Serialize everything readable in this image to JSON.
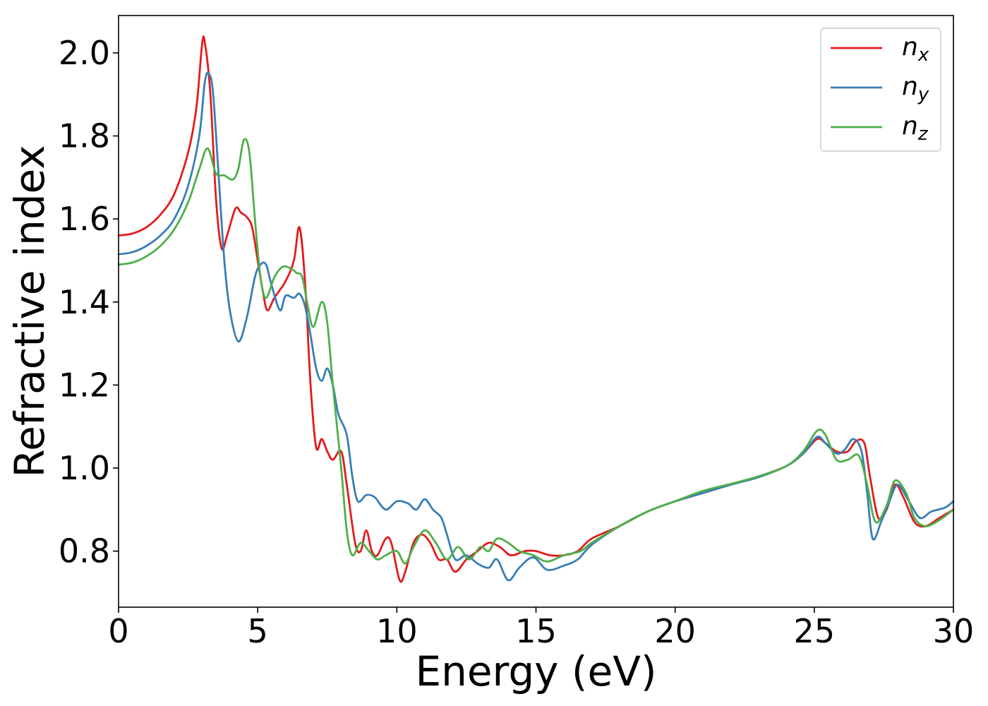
{
  "chart_data": {
    "type": "line",
    "xlabel": "Energy (eV)",
    "ylabel": "Refractive index",
    "xlim": [
      0,
      30
    ],
    "ylim": [
      0.665,
      2.09
    ],
    "xticks": [
      0,
      5,
      10,
      15,
      20,
      25,
      30
    ],
    "yticks": [
      0.8,
      1.0,
      1.2,
      1.4,
      1.6,
      1.8,
      2.0
    ],
    "ytick_labels": [
      "0.8",
      "1.0",
      "1.2",
      "1.4",
      "1.6",
      "1.8",
      "2.0"
    ],
    "grid": false,
    "legend_position": "top-right",
    "series": [
      {
        "name": "n",
        "subscript": "x",
        "color": "#e41a1c",
        "points": [
          [
            0,
            1.56
          ],
          [
            0.5,
            1.565
          ],
          [
            1,
            1.58
          ],
          [
            1.5,
            1.61
          ],
          [
            2,
            1.66
          ],
          [
            2.5,
            1.76
          ],
          [
            2.8,
            1.87
          ],
          [
            3.0,
            2.02
          ],
          [
            3.1,
            2.025
          ],
          [
            3.3,
            1.9
          ],
          [
            3.5,
            1.65
          ],
          [
            3.7,
            1.53
          ],
          [
            3.9,
            1.56
          ],
          [
            4.2,
            1.625
          ],
          [
            4.4,
            1.615
          ],
          [
            4.6,
            1.605
          ],
          [
            4.8,
            1.58
          ],
          [
            5.0,
            1.5
          ],
          [
            5.2,
            1.42
          ],
          [
            5.35,
            1.38
          ],
          [
            5.6,
            1.41
          ],
          [
            6.0,
            1.45
          ],
          [
            6.3,
            1.5
          ],
          [
            6.5,
            1.58
          ],
          [
            6.7,
            1.45
          ],
          [
            6.9,
            1.2
          ],
          [
            7.1,
            1.05
          ],
          [
            7.3,
            1.07
          ],
          [
            7.5,
            1.04
          ],
          [
            7.7,
            1.02
          ],
          [
            8.0,
            1.04
          ],
          [
            8.2,
            0.96
          ],
          [
            8.5,
            0.82
          ],
          [
            8.7,
            0.8
          ],
          [
            8.9,
            0.85
          ],
          [
            9.1,
            0.8
          ],
          [
            9.3,
            0.79
          ],
          [
            9.6,
            0.83
          ],
          [
            9.8,
            0.82
          ],
          [
            10.1,
            0.73
          ],
          [
            10.3,
            0.75
          ],
          [
            10.6,
            0.82
          ],
          [
            10.9,
            0.84
          ],
          [
            11.2,
            0.82
          ],
          [
            11.5,
            0.78
          ],
          [
            11.8,
            0.78
          ],
          [
            12.1,
            0.75
          ],
          [
            12.5,
            0.78
          ],
          [
            12.9,
            0.8
          ],
          [
            13.3,
            0.82
          ],
          [
            13.7,
            0.81
          ],
          [
            14.1,
            0.79
          ],
          [
            14.6,
            0.8
          ],
          [
            15.0,
            0.8
          ],
          [
            15.5,
            0.79
          ],
          [
            16.0,
            0.79
          ],
          [
            16.5,
            0.8
          ],
          [
            17.0,
            0.83
          ],
          [
            18.0,
            0.86
          ],
          [
            19.0,
            0.895
          ],
          [
            20.0,
            0.92
          ],
          [
            21.0,
            0.94
          ],
          [
            22.0,
            0.96
          ],
          [
            23.0,
            0.98
          ],
          [
            24.0,
            1.005
          ],
          [
            24.6,
            1.035
          ],
          [
            25.1,
            1.07
          ],
          [
            25.4,
            1.06
          ],
          [
            25.8,
            1.04
          ],
          [
            26.2,
            1.04
          ],
          [
            26.5,
            1.065
          ],
          [
            26.8,
            1.06
          ],
          [
            27.0,
            0.98
          ],
          [
            27.3,
            0.88
          ],
          [
            27.6,
            0.9
          ],
          [
            27.9,
            0.96
          ],
          [
            28.2,
            0.93
          ],
          [
            28.6,
            0.87
          ],
          [
            29.0,
            0.86
          ],
          [
            29.5,
            0.88
          ],
          [
            30.0,
            0.9
          ]
        ]
      },
      {
        "name": "n",
        "subscript": "y",
        "color": "#377eb8",
        "points": [
          [
            0,
            1.515
          ],
          [
            0.5,
            1.52
          ],
          [
            1,
            1.535
          ],
          [
            1.5,
            1.56
          ],
          [
            2,
            1.6
          ],
          [
            2.5,
            1.68
          ],
          [
            2.9,
            1.8
          ],
          [
            3.1,
            1.93
          ],
          [
            3.25,
            1.95
          ],
          [
            3.4,
            1.9
          ],
          [
            3.6,
            1.7
          ],
          [
            3.8,
            1.5
          ],
          [
            4.0,
            1.38
          ],
          [
            4.3,
            1.305
          ],
          [
            4.6,
            1.36
          ],
          [
            4.9,
            1.46
          ],
          [
            5.1,
            1.49
          ],
          [
            5.3,
            1.49
          ],
          [
            5.5,
            1.44
          ],
          [
            5.8,
            1.38
          ],
          [
            6.0,
            1.415
          ],
          [
            6.3,
            1.41
          ],
          [
            6.5,
            1.42
          ],
          [
            6.7,
            1.39
          ],
          [
            6.9,
            1.32
          ],
          [
            7.1,
            1.24
          ],
          [
            7.3,
            1.21
          ],
          [
            7.5,
            1.24
          ],
          [
            7.7,
            1.2
          ],
          [
            7.9,
            1.13
          ],
          [
            8.2,
            1.08
          ],
          [
            8.4,
            0.98
          ],
          [
            8.6,
            0.92
          ],
          [
            8.9,
            0.935
          ],
          [
            9.2,
            0.93
          ],
          [
            9.6,
            0.9
          ],
          [
            10.0,
            0.92
          ],
          [
            10.4,
            0.915
          ],
          [
            10.7,
            0.9
          ],
          [
            11.0,
            0.925
          ],
          [
            11.3,
            0.9
          ],
          [
            11.6,
            0.88
          ],
          [
            11.8,
            0.84
          ],
          [
            12.1,
            0.78
          ],
          [
            12.5,
            0.79
          ],
          [
            12.9,
            0.77
          ],
          [
            13.3,
            0.76
          ],
          [
            13.6,
            0.78
          ],
          [
            14.0,
            0.73
          ],
          [
            14.4,
            0.76
          ],
          [
            14.9,
            0.785
          ],
          [
            15.4,
            0.755
          ],
          [
            16.0,
            0.765
          ],
          [
            16.5,
            0.78
          ],
          [
            17.0,
            0.815
          ],
          [
            18.0,
            0.86
          ],
          [
            19.0,
            0.895
          ],
          [
            20.0,
            0.92
          ],
          [
            21.0,
            0.94
          ],
          [
            22.0,
            0.96
          ],
          [
            23.0,
            0.978
          ],
          [
            24.0,
            1.005
          ],
          [
            24.6,
            1.035
          ],
          [
            25.1,
            1.075
          ],
          [
            25.4,
            1.06
          ],
          [
            25.8,
            1.035
          ],
          [
            26.1,
            1.045
          ],
          [
            26.4,
            1.07
          ],
          [
            26.7,
            1.04
          ],
          [
            26.9,
            0.94
          ],
          [
            27.1,
            0.83
          ],
          [
            27.4,
            0.87
          ],
          [
            27.7,
            0.92
          ],
          [
            28.0,
            0.96
          ],
          [
            28.4,
            0.92
          ],
          [
            28.8,
            0.88
          ],
          [
            29.2,
            0.895
          ],
          [
            29.7,
            0.905
          ],
          [
            30.0,
            0.92
          ]
        ]
      },
      {
        "name": "n",
        "subscript": "z",
        "color": "#4daf4a",
        "points": [
          [
            0,
            1.49
          ],
          [
            0.5,
            1.495
          ],
          [
            1,
            1.51
          ],
          [
            1.5,
            1.535
          ],
          [
            2,
            1.575
          ],
          [
            2.5,
            1.64
          ],
          [
            2.9,
            1.72
          ],
          [
            3.2,
            1.77
          ],
          [
            3.5,
            1.71
          ],
          [
            3.8,
            1.705
          ],
          [
            4.1,
            1.695
          ],
          [
            4.3,
            1.72
          ],
          [
            4.5,
            1.79
          ],
          [
            4.7,
            1.76
          ],
          [
            4.9,
            1.6
          ],
          [
            5.1,
            1.46
          ],
          [
            5.3,
            1.41
          ],
          [
            5.6,
            1.46
          ],
          [
            5.9,
            1.485
          ],
          [
            6.2,
            1.48
          ],
          [
            6.4,
            1.47
          ],
          [
            6.6,
            1.46
          ],
          [
            6.8,
            1.39
          ],
          [
            7.0,
            1.34
          ],
          [
            7.3,
            1.4
          ],
          [
            7.5,
            1.35
          ],
          [
            7.7,
            1.2
          ],
          [
            8.0,
            1.0
          ],
          [
            8.2,
            0.85
          ],
          [
            8.4,
            0.79
          ],
          [
            8.7,
            0.82
          ],
          [
            9.0,
            0.8
          ],
          [
            9.3,
            0.78
          ],
          [
            9.6,
            0.79
          ],
          [
            10.0,
            0.8
          ],
          [
            10.3,
            0.77
          ],
          [
            10.6,
            0.81
          ],
          [
            11.0,
            0.85
          ],
          [
            11.4,
            0.82
          ],
          [
            11.8,
            0.78
          ],
          [
            12.2,
            0.81
          ],
          [
            12.6,
            0.78
          ],
          [
            13.0,
            0.81
          ],
          [
            13.3,
            0.8
          ],
          [
            13.6,
            0.83
          ],
          [
            14.0,
            0.82
          ],
          [
            14.4,
            0.8
          ],
          [
            14.9,
            0.79
          ],
          [
            15.4,
            0.775
          ],
          [
            16.0,
            0.79
          ],
          [
            16.6,
            0.8
          ],
          [
            17.0,
            0.82
          ],
          [
            18.0,
            0.86
          ],
          [
            19.0,
            0.895
          ],
          [
            20.0,
            0.92
          ],
          [
            21.0,
            0.945
          ],
          [
            22.0,
            0.962
          ],
          [
            23.0,
            0.98
          ],
          [
            24.0,
            1.005
          ],
          [
            24.6,
            1.04
          ],
          [
            25.1,
            1.09
          ],
          [
            25.4,
            1.08
          ],
          [
            25.8,
            1.02
          ],
          [
            26.2,
            1.02
          ],
          [
            26.6,
            1.03
          ],
          [
            26.9,
            0.96
          ],
          [
            27.2,
            0.87
          ],
          [
            27.6,
            0.91
          ],
          [
            27.9,
            0.97
          ],
          [
            28.3,
            0.94
          ],
          [
            28.6,
            0.88
          ],
          [
            29.0,
            0.86
          ],
          [
            29.5,
            0.875
          ],
          [
            30.0,
            0.9
          ]
        ]
      }
    ]
  }
}
